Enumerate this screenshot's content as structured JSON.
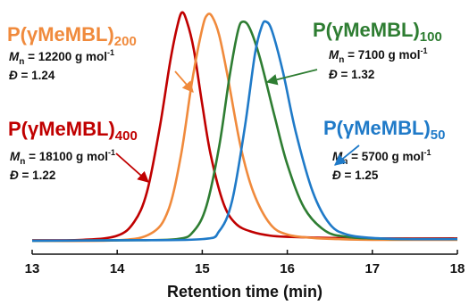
{
  "chart_data": {
    "type": "line",
    "xlabel": "Retention time (min)",
    "ylabel": "",
    "title": "",
    "xlim": [
      13,
      18
    ],
    "xticks": [
      13,
      14,
      15,
      16,
      17,
      18
    ],
    "grid": false,
    "series": [
      {
        "key": "p400",
        "name_main": "P(γMeMBL)",
        "name_sub": "400",
        "color": "#c00000",
        "x": [
          13.0,
          13.6,
          14.0,
          14.2,
          14.35,
          14.5,
          14.62,
          14.7,
          14.76,
          14.82,
          14.9,
          15.0,
          15.1,
          15.25,
          15.4,
          15.6,
          15.8,
          16.0,
          16.5,
          17.0,
          18.0
        ],
        "y": [
          0.01,
          0.012,
          0.03,
          0.09,
          0.22,
          0.5,
          0.78,
          0.93,
          1.0,
          0.96,
          0.84,
          0.6,
          0.38,
          0.17,
          0.08,
          0.045,
          0.03,
          0.025,
          0.02,
          0.018,
          0.018
        ],
        "mn_label": "M",
        "mn_sub": "n",
        "mn_value": " = 18100 g mol",
        "mn_exp": "-1",
        "dispersity_label": "Đ",
        "dispersity_value": " = 1.22"
      },
      {
        "key": "p200",
        "name_main": "P(γMeMBL)",
        "name_sub": "200",
        "color": "#f08a3c",
        "x": [
          13.0,
          14.0,
          14.4,
          14.6,
          14.75,
          14.88,
          15.0,
          15.06,
          15.12,
          15.2,
          15.3,
          15.45,
          15.6,
          15.8,
          16.0,
          16.3,
          16.6,
          17.0,
          18.0
        ],
        "y": [
          0.008,
          0.01,
          0.04,
          0.14,
          0.38,
          0.7,
          0.93,
          0.99,
          0.98,
          0.9,
          0.72,
          0.42,
          0.22,
          0.08,
          0.035,
          0.02,
          0.015,
          0.012,
          0.012
        ],
        "mn_label": "M",
        "mn_sub": "n",
        "mn_value": " = 12200 g mol",
        "mn_exp": "-1",
        "dispersity_label": "Đ",
        "dispersity_value": " = 1.24"
      },
      {
        "key": "p100",
        "name_main": "P(γMeMBL)",
        "name_sub": "100",
        "color": "#2e7d32",
        "x": [
          13.0,
          14.0,
          14.7,
          14.9,
          15.05,
          15.2,
          15.32,
          15.42,
          15.48,
          15.56,
          15.68,
          15.85,
          16.0,
          16.2,
          16.45,
          16.7,
          17.0,
          17.4,
          18.0
        ],
        "y": [
          0.008,
          0.01,
          0.015,
          0.05,
          0.16,
          0.42,
          0.72,
          0.92,
          0.96,
          0.93,
          0.8,
          0.55,
          0.34,
          0.15,
          0.05,
          0.025,
          0.018,
          0.015,
          0.015
        ],
        "mn_label": "M",
        "mn_sub": "n",
        "mn_value": " = 7100 g mol",
        "mn_exp": "-1",
        "dispersity_label": "Đ",
        "dispersity_value": " = 1.32"
      },
      {
        "key": "p50",
        "name_main": "P(γMeMBL)",
        "name_sub": "50",
        "color": "#1f7ac8",
        "x": [
          13.0,
          14.0,
          15.0,
          15.2,
          15.35,
          15.5,
          15.62,
          15.7,
          15.75,
          15.82,
          15.95,
          16.1,
          16.3,
          16.5,
          16.7,
          17.0,
          17.4,
          18.0
        ],
        "y": [
          0.008,
          0.01,
          0.015,
          0.05,
          0.18,
          0.5,
          0.82,
          0.94,
          0.96,
          0.92,
          0.74,
          0.48,
          0.22,
          0.08,
          0.035,
          0.02,
          0.015,
          0.015
        ],
        "mn_label": "M",
        "mn_sub": "n",
        "mn_value": " = 5700 g mol",
        "mn_exp": "-1",
        "dispersity_label": "Đ",
        "dispersity_value": " = 1.25"
      }
    ]
  }
}
